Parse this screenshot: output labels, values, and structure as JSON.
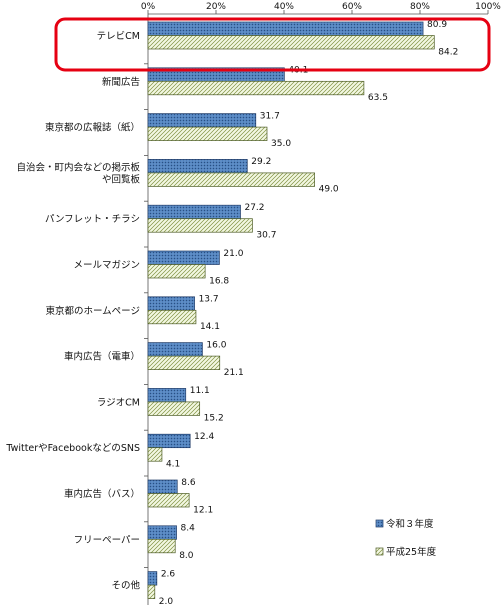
{
  "chart_data": {
    "type": "bar",
    "orientation": "horizontal",
    "categories": [
      "テレビCM",
      "新聞広告",
      "東京都の広報誌（紙）",
      "自治会・町内会などの掲示板\nや回覧板",
      "パンフレット・チラシ",
      "メールマガジン",
      "東京都のホームページ",
      "車内広告（電車）",
      "ラジオCM",
      "TwitterやFacebookなどのSNS",
      "車内広告（バス）",
      "フリーペーパー",
      "その他"
    ],
    "series": [
      {
        "name": "令和３年度",
        "values": [
          80.9,
          40.1,
          31.7,
          29.2,
          27.2,
          21.0,
          13.7,
          16.0,
          11.1,
          12.4,
          8.6,
          8.4,
          2.6
        ],
        "color": "#4f81bd",
        "pattern": "dots"
      },
      {
        "name": "平成25年度",
        "values": [
          84.2,
          63.5,
          35.0,
          49.0,
          30.7,
          16.8,
          14.1,
          21.1,
          15.2,
          4.1,
          12.1,
          8.0,
          2.0
        ],
        "color": "#eef5d8",
        "pattern": "diagonal-hatch"
      }
    ],
    "xlim": [
      0,
      100
    ],
    "x_ticks": [
      "0%",
      "20%",
      "40%",
      "60%",
      "80%",
      "100%"
    ],
    "axis_position": "top",
    "grid": false,
    "legend_position": "lower-right",
    "highlight": {
      "category": "テレビCM",
      "color": "#e60012"
    }
  }
}
